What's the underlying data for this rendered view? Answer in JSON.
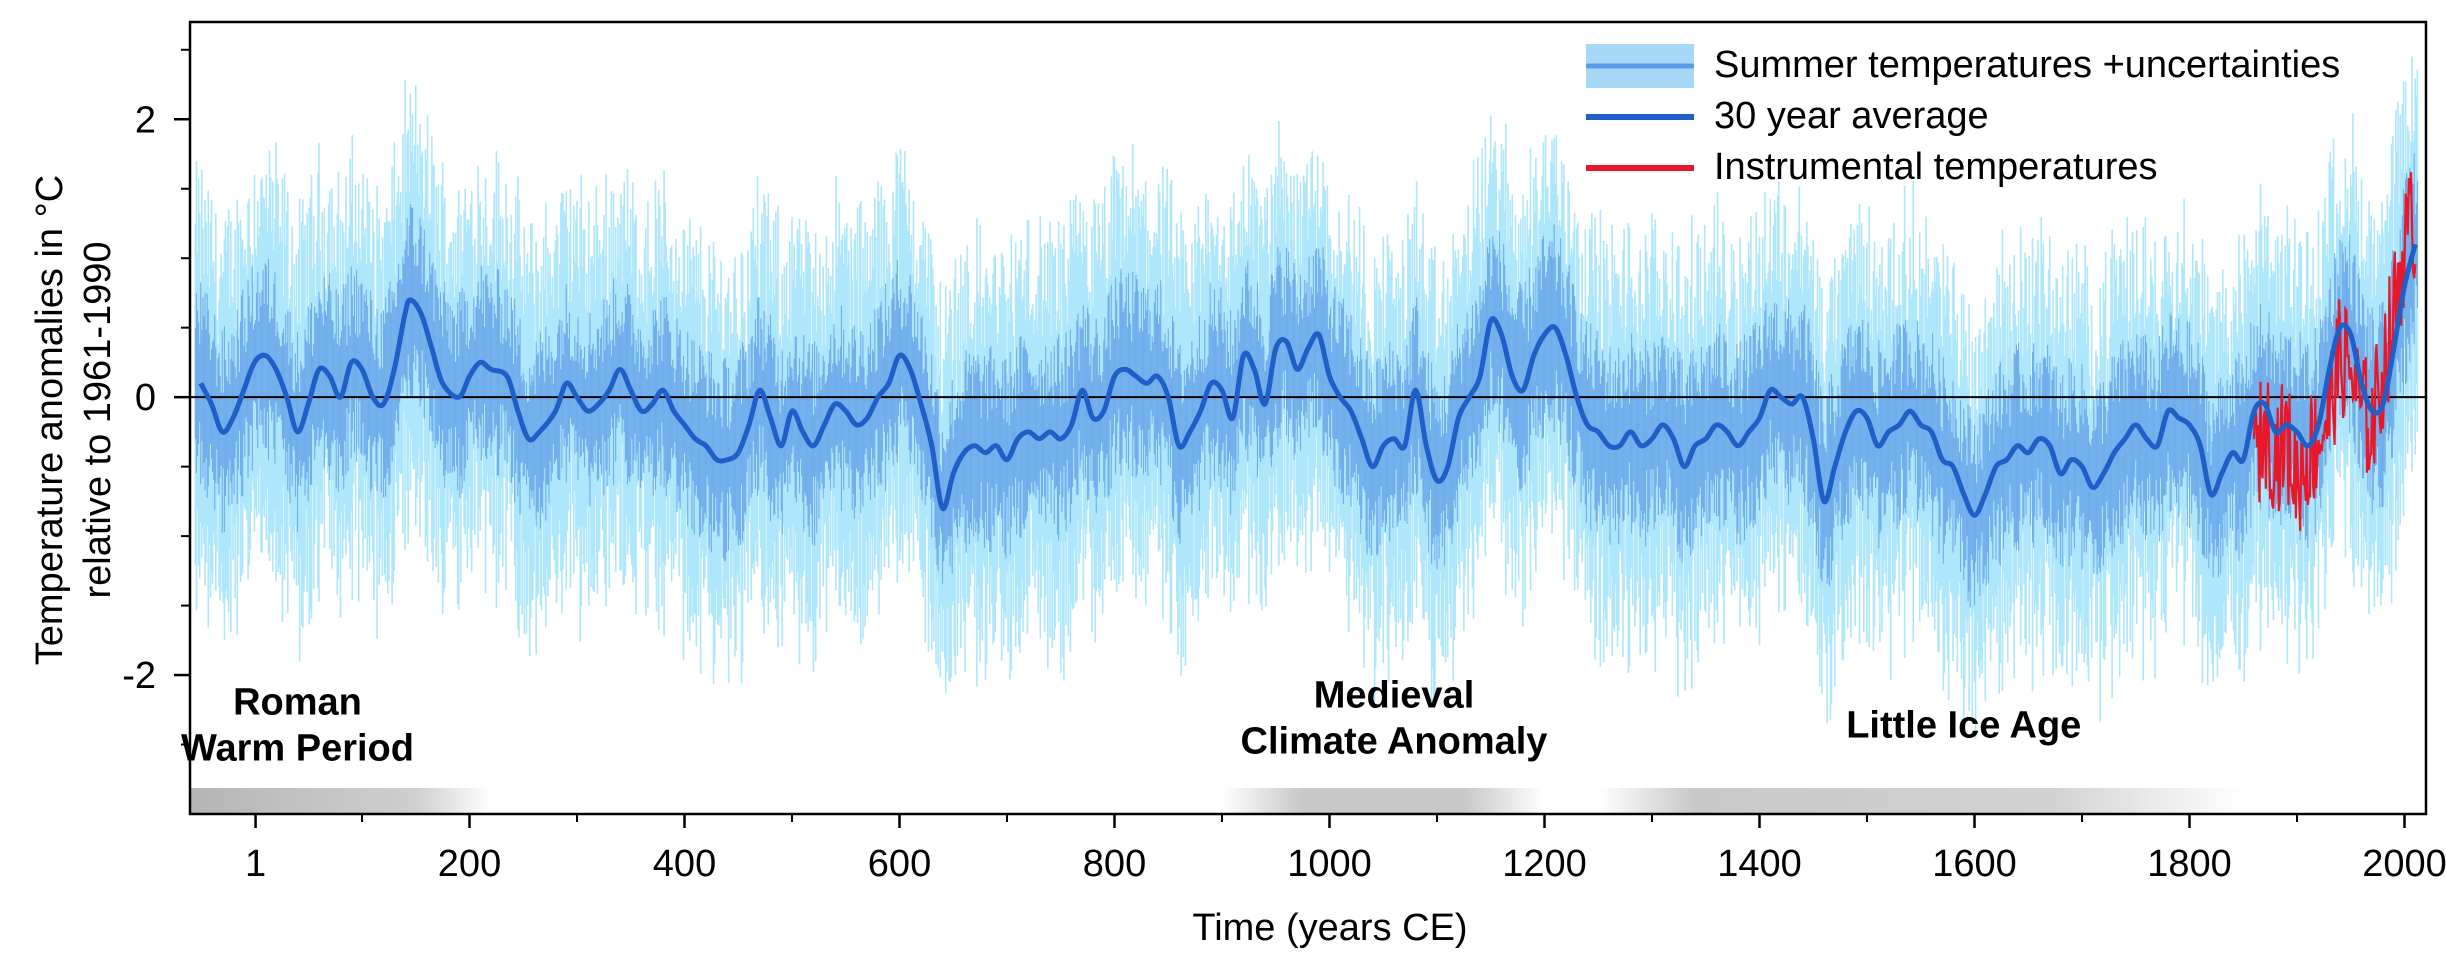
{
  "chart_data": {
    "type": "line",
    "title": "",
    "xlabel": "Time (years CE)",
    "ylabel_line1": "Temperature anomalies in °C",
    "ylabel_line2": "relative to 1961-1990",
    "xlim": [
      -60,
      2020
    ],
    "ylim": [
      -3.0,
      2.7
    ],
    "x_ticks": [
      {
        "value": 1,
        "label": "1"
      },
      {
        "value": 200,
        "label": "200"
      },
      {
        "value": 400,
        "label": "400"
      },
      {
        "value": 600,
        "label": "600"
      },
      {
        "value": 800,
        "label": "800"
      },
      {
        "value": 1000,
        "label": "1000"
      },
      {
        "value": 1200,
        "label": "1200"
      },
      {
        "value": 1400,
        "label": "1400"
      },
      {
        "value": 1600,
        "label": "1600"
      },
      {
        "value": 1800,
        "label": "1800"
      },
      {
        "value": 2000,
        "label": "2000"
      }
    ],
    "y_ticks": [
      {
        "value": 2,
        "label": "2"
      },
      {
        "value": 0,
        "label": "0"
      },
      {
        "value": -2,
        "label": "-2"
      }
    ],
    "y_minor_ticks": [
      2.5,
      1.5,
      1,
      0.5,
      -0.5,
      -1,
      -1.5,
      -2.5
    ],
    "zero_line": 0,
    "grid": false,
    "legend_position": "top-right",
    "legend": [
      {
        "label": "Summer temperatures +uncertainties",
        "color": "#8fc8f4"
      },
      {
        "label": "30 year average",
        "color": "#1f5fc8"
      },
      {
        "label": "Instrumental temperatures",
        "color": "#e8182a"
      }
    ],
    "colors": {
      "uncertainty": "#aee6fb",
      "annual": "#5b9ae6",
      "average": "#1f5fc8",
      "instrumental": "#e8182a",
      "period_bar": "#b8b8b8"
    },
    "series": [
      {
        "name": "30 year average",
        "points": [
          [
            -50,
            0.1
          ],
          [
            -40,
            -0.05
          ],
          [
            -30,
            -0.25
          ],
          [
            -20,
            -0.15
          ],
          [
            -10,
            0.05
          ],
          [
            0,
            0.25
          ],
          [
            10,
            0.3
          ],
          [
            20,
            0.2
          ],
          [
            30,
            0.0
          ],
          [
            40,
            -0.25
          ],
          [
            50,
            -0.05
          ],
          [
            60,
            0.2
          ],
          [
            70,
            0.15
          ],
          [
            80,
            0.0
          ],
          [
            90,
            0.25
          ],
          [
            100,
            0.2
          ],
          [
            110,
            0.0
          ],
          [
            120,
            -0.05
          ],
          [
            130,
            0.2
          ],
          [
            140,
            0.6
          ],
          [
            145,
            0.7
          ],
          [
            155,
            0.6
          ],
          [
            165,
            0.35
          ],
          [
            175,
            0.1
          ],
          [
            190,
            0.0
          ],
          [
            200,
            0.15
          ],
          [
            210,
            0.25
          ],
          [
            220,
            0.2
          ],
          [
            235,
            0.15
          ],
          [
            245,
            -0.1
          ],
          [
            255,
            -0.3
          ],
          [
            265,
            -0.25
          ],
          [
            280,
            -0.1
          ],
          [
            290,
            0.1
          ],
          [
            300,
            0.0
          ],
          [
            310,
            -0.1
          ],
          [
            320,
            -0.05
          ],
          [
            330,
            0.05
          ],
          [
            340,
            0.2
          ],
          [
            350,
            0.05
          ],
          [
            360,
            -0.1
          ],
          [
            370,
            -0.05
          ],
          [
            380,
            0.05
          ],
          [
            390,
            -0.1
          ],
          [
            400,
            -0.2
          ],
          [
            410,
            -0.3
          ],
          [
            420,
            -0.35
          ],
          [
            430,
            -0.45
          ],
          [
            440,
            -0.45
          ],
          [
            450,
            -0.4
          ],
          [
            460,
            -0.2
          ],
          [
            470,
            0.05
          ],
          [
            480,
            -0.15
          ],
          [
            490,
            -0.35
          ],
          [
            500,
            -0.1
          ],
          [
            510,
            -0.25
          ],
          [
            520,
            -0.35
          ],
          [
            530,
            -0.2
          ],
          [
            540,
            -0.05
          ],
          [
            550,
            -0.1
          ],
          [
            560,
            -0.2
          ],
          [
            570,
            -0.15
          ],
          [
            580,
            0.0
          ],
          [
            590,
            0.1
          ],
          [
            600,
            0.3
          ],
          [
            610,
            0.2
          ],
          [
            620,
            -0.05
          ],
          [
            630,
            -0.35
          ],
          [
            640,
            -0.8
          ],
          [
            650,
            -0.55
          ],
          [
            660,
            -0.4
          ],
          [
            670,
            -0.35
          ],
          [
            680,
            -0.4
          ],
          [
            690,
            -0.35
          ],
          [
            700,
            -0.45
          ],
          [
            710,
            -0.3
          ],
          [
            720,
            -0.25
          ],
          [
            730,
            -0.3
          ],
          [
            740,
            -0.25
          ],
          [
            750,
            -0.3
          ],
          [
            760,
            -0.2
          ],
          [
            770,
            0.05
          ],
          [
            780,
            -0.15
          ],
          [
            790,
            -0.1
          ],
          [
            800,
            0.15
          ],
          [
            810,
            0.2
          ],
          [
            820,
            0.15
          ],
          [
            830,
            0.1
          ],
          [
            840,
            0.15
          ],
          [
            850,
            0.0
          ],
          [
            860,
            -0.35
          ],
          [
            870,
            -0.25
          ],
          [
            880,
            -0.1
          ],
          [
            890,
            0.1
          ],
          [
            900,
            0.05
          ],
          [
            910,
            -0.15
          ],
          [
            920,
            0.3
          ],
          [
            930,
            0.2
          ],
          [
            940,
            -0.05
          ],
          [
            950,
            0.35
          ],
          [
            960,
            0.4
          ],
          [
            970,
            0.2
          ],
          [
            980,
            0.35
          ],
          [
            990,
            0.45
          ],
          [
            1000,
            0.15
          ],
          [
            1010,
            0.0
          ],
          [
            1020,
            -0.1
          ],
          [
            1030,
            -0.3
          ],
          [
            1040,
            -0.5
          ],
          [
            1050,
            -0.35
          ],
          [
            1060,
            -0.3
          ],
          [
            1070,
            -0.35
          ],
          [
            1080,
            0.05
          ],
          [
            1090,
            -0.35
          ],
          [
            1100,
            -0.6
          ],
          [
            1110,
            -0.5
          ],
          [
            1120,
            -0.15
          ],
          [
            1130,
            0.0
          ],
          [
            1140,
            0.15
          ],
          [
            1150,
            0.55
          ],
          [
            1160,
            0.45
          ],
          [
            1170,
            0.15
          ],
          [
            1180,
            0.05
          ],
          [
            1190,
            0.3
          ],
          [
            1200,
            0.45
          ],
          [
            1210,
            0.5
          ],
          [
            1220,
            0.3
          ],
          [
            1230,
            0.0
          ],
          [
            1240,
            -0.2
          ],
          [
            1250,
            -0.25
          ],
          [
            1260,
            -0.35
          ],
          [
            1270,
            -0.35
          ],
          [
            1280,
            -0.25
          ],
          [
            1290,
            -0.35
          ],
          [
            1300,
            -0.3
          ],
          [
            1310,
            -0.2
          ],
          [
            1320,
            -0.3
          ],
          [
            1330,
            -0.5
          ],
          [
            1340,
            -0.35
          ],
          [
            1350,
            -0.3
          ],
          [
            1360,
            -0.2
          ],
          [
            1370,
            -0.25
          ],
          [
            1380,
            -0.35
          ],
          [
            1390,
            -0.25
          ],
          [
            1400,
            -0.15
          ],
          [
            1410,
            0.05
          ],
          [
            1420,
            0.0
          ],
          [
            1430,
            -0.05
          ],
          [
            1440,
            0.0
          ],
          [
            1450,
            -0.3
          ],
          [
            1460,
            -0.75
          ],
          [
            1470,
            -0.5
          ],
          [
            1480,
            -0.25
          ],
          [
            1490,
            -0.1
          ],
          [
            1500,
            -0.15
          ],
          [
            1510,
            -0.35
          ],
          [
            1520,
            -0.25
          ],
          [
            1530,
            -0.2
          ],
          [
            1540,
            -0.1
          ],
          [
            1550,
            -0.2
          ],
          [
            1560,
            -0.25
          ],
          [
            1570,
            -0.45
          ],
          [
            1580,
            -0.5
          ],
          [
            1590,
            -0.7
          ],
          [
            1600,
            -0.85
          ],
          [
            1610,
            -0.7
          ],
          [
            1620,
            -0.5
          ],
          [
            1630,
            -0.45
          ],
          [
            1640,
            -0.35
          ],
          [
            1650,
            -0.4
          ],
          [
            1660,
            -0.3
          ],
          [
            1670,
            -0.35
          ],
          [
            1680,
            -0.55
          ],
          [
            1690,
            -0.45
          ],
          [
            1700,
            -0.5
          ],
          [
            1710,
            -0.65
          ],
          [
            1720,
            -0.55
          ],
          [
            1730,
            -0.4
          ],
          [
            1740,
            -0.3
          ],
          [
            1750,
            -0.2
          ],
          [
            1760,
            -0.3
          ],
          [
            1770,
            -0.35
          ],
          [
            1780,
            -0.1
          ],
          [
            1790,
            -0.15
          ],
          [
            1800,
            -0.2
          ],
          [
            1810,
            -0.35
          ],
          [
            1820,
            -0.7
          ],
          [
            1830,
            -0.55
          ],
          [
            1840,
            -0.4
          ],
          [
            1850,
            -0.45
          ],
          [
            1860,
            -0.1
          ],
          [
            1870,
            -0.05
          ],
          [
            1880,
            -0.25
          ],
          [
            1890,
            -0.2
          ],
          [
            1900,
            -0.25
          ],
          [
            1910,
            -0.35
          ],
          [
            1920,
            -0.2
          ],
          [
            1930,
            0.2
          ],
          [
            1940,
            0.5
          ],
          [
            1950,
            0.45
          ],
          [
            1960,
            0.1
          ],
          [
            1970,
            -0.1
          ],
          [
            1980,
            -0.05
          ],
          [
            1990,
            0.35
          ],
          [
            2000,
            0.8
          ],
          [
            2010,
            1.1
          ]
        ]
      },
      {
        "name": "Instrumental temperatures",
        "points": [
          [
            1860,
            -0.5
          ],
          [
            1870,
            -0.2
          ],
          [
            1880,
            -0.4
          ],
          [
            1890,
            -0.3
          ],
          [
            1900,
            -0.6
          ],
          [
            1910,
            -0.4
          ],
          [
            1920,
            -0.3
          ],
          [
            1930,
            -0.1
          ],
          [
            1940,
            0.3
          ],
          [
            1950,
            0.2
          ],
          [
            1960,
            -0.1
          ],
          [
            1970,
            -0.2
          ],
          [
            1980,
            0.2
          ],
          [
            1990,
            0.6
          ],
          [
            2000,
            1.1
          ],
          [
            2010,
            1.3
          ]
        ]
      }
    ],
    "annotations": [
      {
        "text_lines": [
          "Roman",
          "Warm Period"
        ],
        "x": 40,
        "y": -2.45,
        "bar": [
          -60,
          220
        ]
      },
      {
        "text_lines": [
          "Medieval",
          "Climate Anomaly"
        ],
        "x": 1060,
        "y": -2.4,
        "bar": [
          900,
          1200
        ]
      },
      {
        "text_lines": [
          "Little Ice Age"
        ],
        "x": 1590,
        "y": -2.45,
        "bar": [
          1250,
          1850
        ]
      }
    ]
  }
}
